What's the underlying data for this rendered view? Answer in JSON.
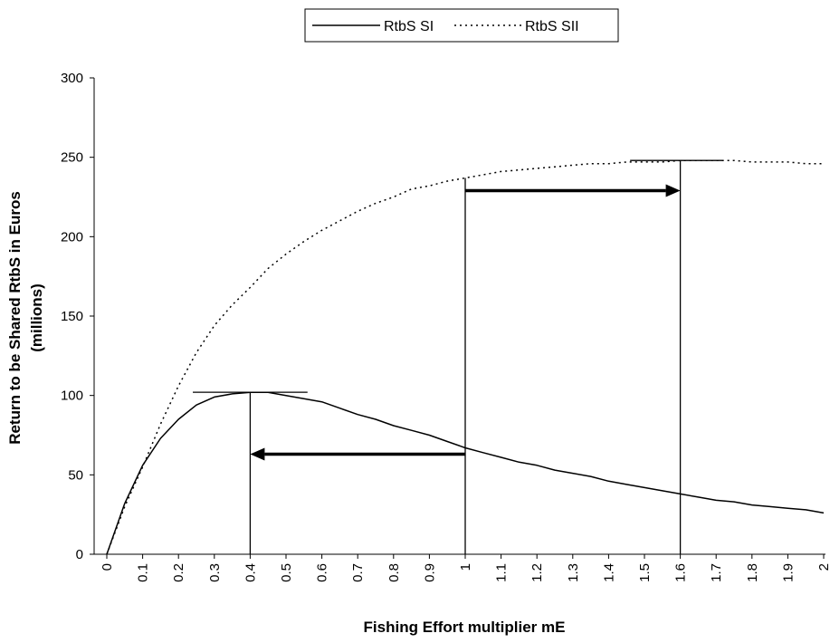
{
  "chart_data": {
    "type": "line",
    "title": "",
    "xlabel": "Fishing Effort multiplier mE",
    "ylabel_line1": "Return to be Shared RtbS in Euros",
    "ylabel_line2": "(millions)",
    "xlim": [
      0,
      2
    ],
    "ylim": [
      0,
      300
    ],
    "y_ticks": [
      0,
      50,
      100,
      150,
      200,
      250,
      300
    ],
    "x_ticks": [
      "0",
      "0.1",
      "0.2",
      "0.3",
      "0.4",
      "0.5",
      "0.6",
      "0.7",
      "0.8",
      "0.9",
      "1",
      "1.1",
      "1.2",
      "1.3",
      "1.4",
      "1.5",
      "1.6",
      "1.7",
      "1.8",
      "1.9",
      "2"
    ],
    "grid": false,
    "legend_position": "top-center",
    "series": [
      {
        "name": "RtbS SI",
        "style": "solid",
        "color": "#000000",
        "x": [
          0,
          0.05,
          0.1,
          0.15,
          0.2,
          0.25,
          0.3,
          0.35,
          0.4,
          0.45,
          0.5,
          0.55,
          0.6,
          0.65,
          0.7,
          0.75,
          0.8,
          0.85,
          0.9,
          0.95,
          1.0,
          1.05,
          1.1,
          1.15,
          1.2,
          1.25,
          1.3,
          1.35,
          1.4,
          1.45,
          1.5,
          1.55,
          1.6,
          1.65,
          1.7,
          1.75,
          1.8,
          1.85,
          1.9,
          1.95,
          2.0
        ],
        "values": [
          0,
          32,
          56,
          73,
          85,
          94,
          99,
          101,
          102,
          102,
          100,
          98,
          96,
          92,
          88,
          85,
          81,
          78,
          75,
          71,
          67,
          64,
          61,
          58,
          56,
          53,
          51,
          49,
          46,
          44,
          42,
          40,
          38,
          36,
          34,
          33,
          31,
          30,
          29,
          28,
          26
        ]
      },
      {
        "name": "RtbS SII",
        "style": "dotted",
        "color": "#000000",
        "x": [
          0,
          0.05,
          0.1,
          0.15,
          0.2,
          0.25,
          0.3,
          0.35,
          0.4,
          0.45,
          0.5,
          0.55,
          0.6,
          0.65,
          0.7,
          0.75,
          0.8,
          0.85,
          0.9,
          0.95,
          1.0,
          1.05,
          1.1,
          1.15,
          1.2,
          1.25,
          1.3,
          1.35,
          1.4,
          1.45,
          1.5,
          1.55,
          1.6,
          1.65,
          1.7,
          1.75,
          1.8,
          1.85,
          1.9,
          1.95,
          2.0
        ],
        "values": [
          0,
          30,
          55,
          82,
          106,
          127,
          144,
          157,
          168,
          180,
          189,
          197,
          204,
          210,
          216,
          221,
          225,
          230,
          232,
          235,
          237,
          239,
          241,
          242,
          243,
          244,
          245,
          246,
          246,
          247,
          247,
          247,
          248,
          248,
          248,
          248,
          247,
          247,
          247,
          246,
          246
        ]
      }
    ],
    "annotations": [
      {
        "kind": "max-marker",
        "x": 0.4,
        "y": 102,
        "h_from": 0.24,
        "h_to": 0.56
      },
      {
        "kind": "max-marker",
        "x": 1.6,
        "y": 248,
        "h_from": 1.46,
        "h_to": 1.72
      },
      {
        "kind": "vertical-line",
        "x": 1.0,
        "y_to": 237
      },
      {
        "kind": "arrow",
        "from": [
          1.0,
          63
        ],
        "to": [
          0.4,
          63
        ]
      },
      {
        "kind": "arrow",
        "from": [
          1.0,
          229
        ],
        "to": [
          1.6,
          229
        ]
      }
    ]
  }
}
